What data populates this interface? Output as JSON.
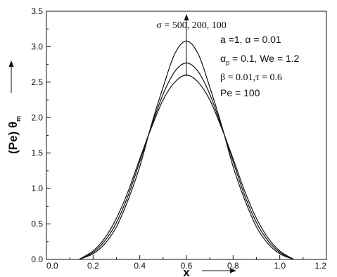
{
  "chart_data": {
    "type": "line",
    "title": "",
    "xlabel": "x",
    "ylabel_main": "(Pe) θ",
    "ylabel_sub": "m",
    "xlim": [
      0.0,
      1.2
    ],
    "ylim": [
      0.0,
      3.5
    ],
    "xticks": [
      "0.0",
      "0.2",
      "0.4",
      "0.6",
      "0.8",
      "1.0",
      "1.2"
    ],
    "yticks": [
      "0.0",
      "0.5",
      "1.0",
      "1.5",
      "2.0",
      "2.5",
      "3.0",
      "3.5"
    ],
    "grid": false,
    "series": [
      {
        "x": [
          0.14,
          0.2,
          0.25,
          0.3,
          0.35,
          0.4,
          0.45,
          0.5,
          0.55,
          0.6,
          0.65,
          0.7,
          0.75,
          0.8,
          0.85,
          0.9,
          0.95,
          1.0,
          1.06
        ],
        "y": [
          0.0,
          0.08,
          0.22,
          0.46,
          0.84,
          1.31,
          1.9,
          2.43,
          2.9,
          3.08,
          2.9,
          2.43,
          1.9,
          1.31,
          0.84,
          0.46,
          0.22,
          0.08,
          0.0
        ]
      },
      {
        "x": [
          0.14,
          0.2,
          0.25,
          0.3,
          0.35,
          0.4,
          0.45,
          0.5,
          0.55,
          0.6,
          0.65,
          0.7,
          0.75,
          0.8,
          0.85,
          0.9,
          0.95,
          1.0,
          1.06
        ],
        "y": [
          0.0,
          0.1,
          0.26,
          0.52,
          0.9,
          1.38,
          1.88,
          2.33,
          2.65,
          2.77,
          2.65,
          2.33,
          1.88,
          1.38,
          0.9,
          0.52,
          0.26,
          0.1,
          0.0
        ]
      },
      {
        "x": [
          0.14,
          0.2,
          0.25,
          0.3,
          0.35,
          0.4,
          0.45,
          0.5,
          0.55,
          0.6,
          0.65,
          0.7,
          0.75,
          0.8,
          0.85,
          0.9,
          0.95,
          1.0,
          1.06
        ],
        "y": [
          0.0,
          0.12,
          0.3,
          0.58,
          0.96,
          1.42,
          1.86,
          2.25,
          2.5,
          2.6,
          2.5,
          2.25,
          1.86,
          1.42,
          0.96,
          0.58,
          0.3,
          0.12,
          0.0
        ]
      }
    ],
    "annotations": {
      "sigma": "σ = 500, 200, 100",
      "line1": "a =1, α = 0.01",
      "line2_pre": "α",
      "line2_sub": "p",
      "line2_post": " = 0.1, We = 1.2",
      "line3": "β = 0.01,τ = 0.6",
      "line4": "Pe = 100"
    },
    "arrow_direction": "up"
  }
}
